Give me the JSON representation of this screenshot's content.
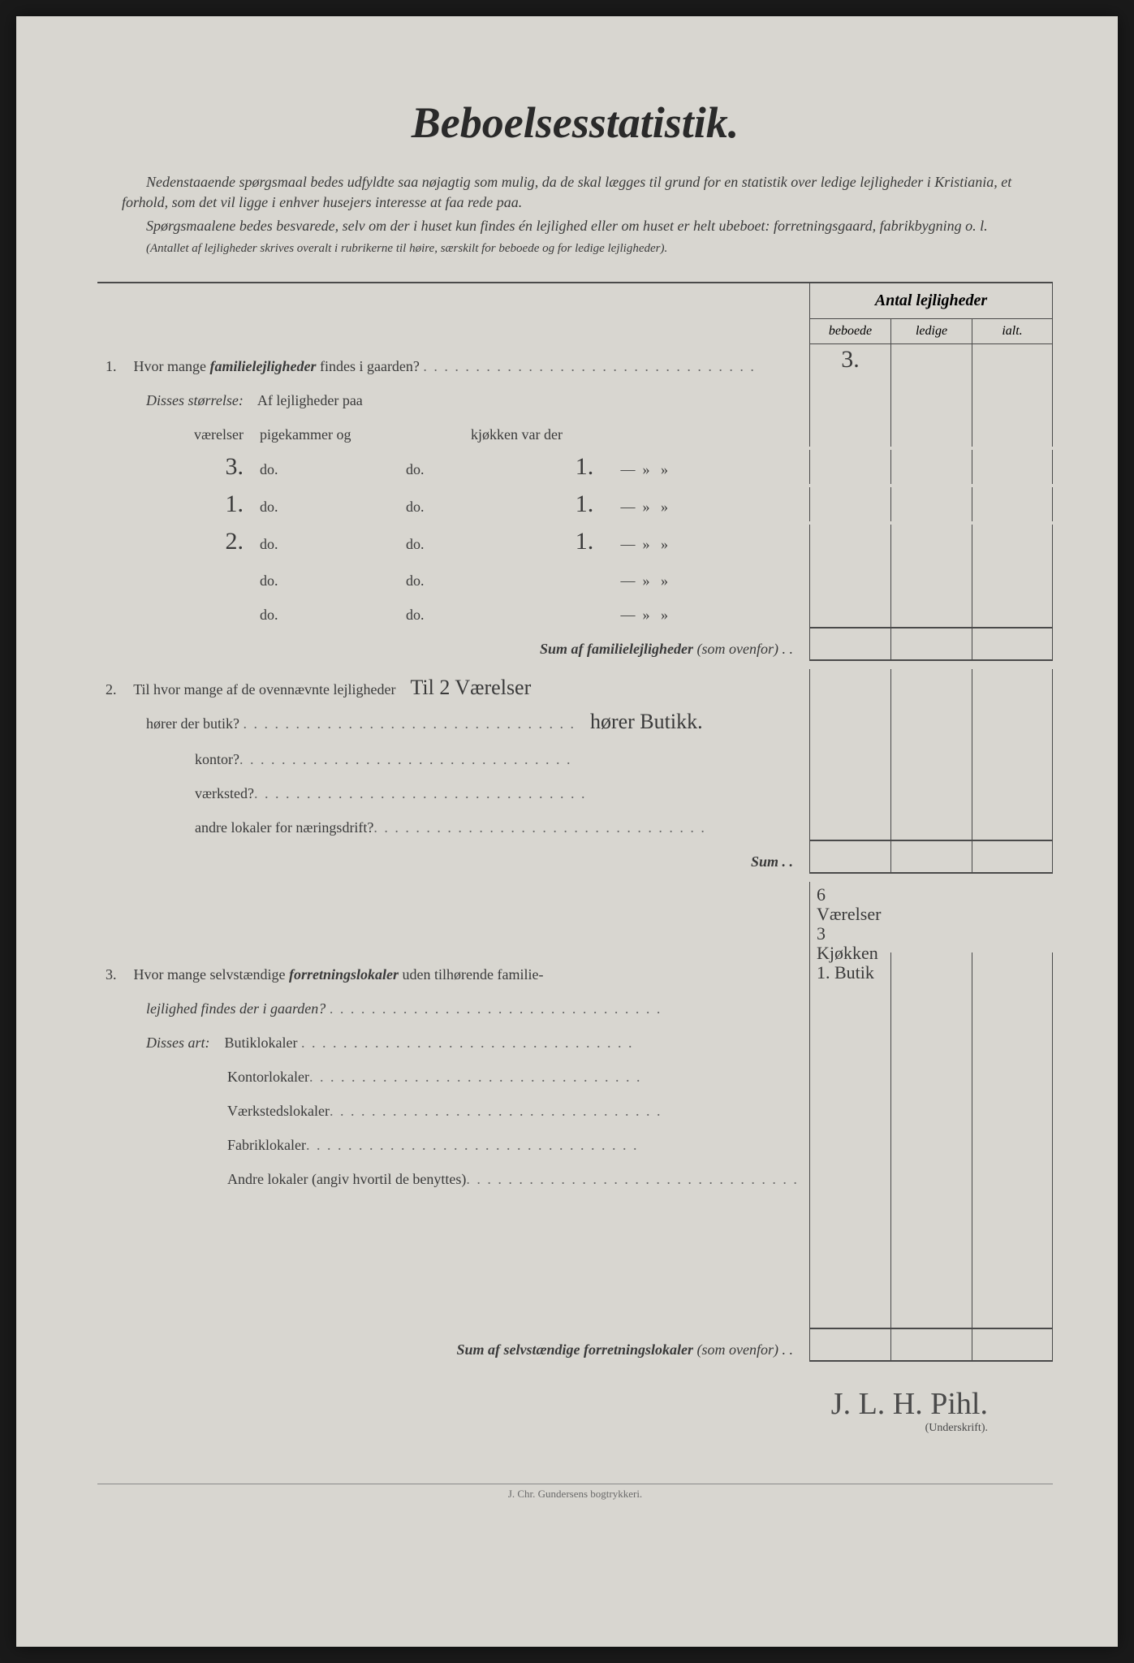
{
  "title": "Beboelsesstatistik.",
  "intro": {
    "p1": "Nedenstaaende spørgsmaal bedes udfyldte saa nøjagtig som mulig, da de skal lægges til grund for en statistik over ledige lejligheder i Kristiania, et forhold, som det vil ligge i enhver husejers interesse at faa rede paa.",
    "p2": "Spørgsmaalene bedes besvarede, selv om der i huset kun findes én lejlighed eller om huset er helt ubeboet: forretningsgaard, fabrikbygning o. l.",
    "p3": "(Antallet af lejligheder skrives overalt i rubrikerne til høire, særskilt for beboede og for ledige lejligheder)."
  },
  "table_header": {
    "main": "Antal lejligheder",
    "col1": "beboede",
    "col2": "ledige",
    "col3": "ialt."
  },
  "q1": {
    "num": "1.",
    "text_a": "Hvor mange ",
    "text_b": "familielejligheder",
    "text_c": " findes i gaarden?",
    "value_beboede": "3.",
    "size_label": "Disses størrelse:",
    "size_intro": "Af lejligheder paa",
    "header_vaerelser": "værelser",
    "header_pigekammer": "pigekammer og",
    "header_kjokken": "kjøkken var der",
    "rows": [
      {
        "v": "3.",
        "do1": "do.",
        "do2": "do.",
        "k": "1."
      },
      {
        "v": "1.",
        "do1": "do.",
        "do2": "do.",
        "k": "1."
      },
      {
        "v": "2.",
        "do1": "do.",
        "do2": "do.",
        "k": "1."
      },
      {
        "v": "",
        "do1": "do.",
        "do2": "do.",
        "k": ""
      },
      {
        "v": "",
        "do1": "do.",
        "do2": "do.",
        "k": ""
      }
    ],
    "sum_label": "Sum af familielejligheder",
    "sum_suffix": "(som ovenfor) . ."
  },
  "q2": {
    "num": "2.",
    "text": "Til hvor mange af de ovennævnte lejligheder",
    "handwritten": "Til 2 Værelser",
    "line2_label": "hører der butik?",
    "line2_hw": "hører Butikk.",
    "items": [
      "kontor?",
      "værksted?",
      "andre lokaler for næringsdrift?"
    ],
    "sum": "Sum . ."
  },
  "q3": {
    "num": "3.",
    "text_a": "Hvor mange selvstændige ",
    "text_b": "forretningslokaler",
    "text_c": " uden tilhørende familie-",
    "text_d": "lejlighed findes der i gaarden?",
    "note": "6 Værelser 3 Kjøkken 1. Butik",
    "disses": "Disses art:",
    "items": [
      "Butiklokaler",
      "Kontorlokaler",
      "Værkstedslokaler",
      "Fabriklokaler",
      "Andre lokaler (angiv hvortil de benyttes)"
    ],
    "sum_label": "Sum af selvstændige forretningslokaler",
    "sum_suffix": "(som ovenfor) . ."
  },
  "signature": {
    "name": "J. L. H. Pihl.",
    "label": "(Underskrift)."
  },
  "footer": "J. Chr. Gundersens bogtrykkeri.",
  "colors": {
    "page_bg": "#d8d6d0",
    "text": "#3a3a3a",
    "border": "#4a4a4a"
  }
}
